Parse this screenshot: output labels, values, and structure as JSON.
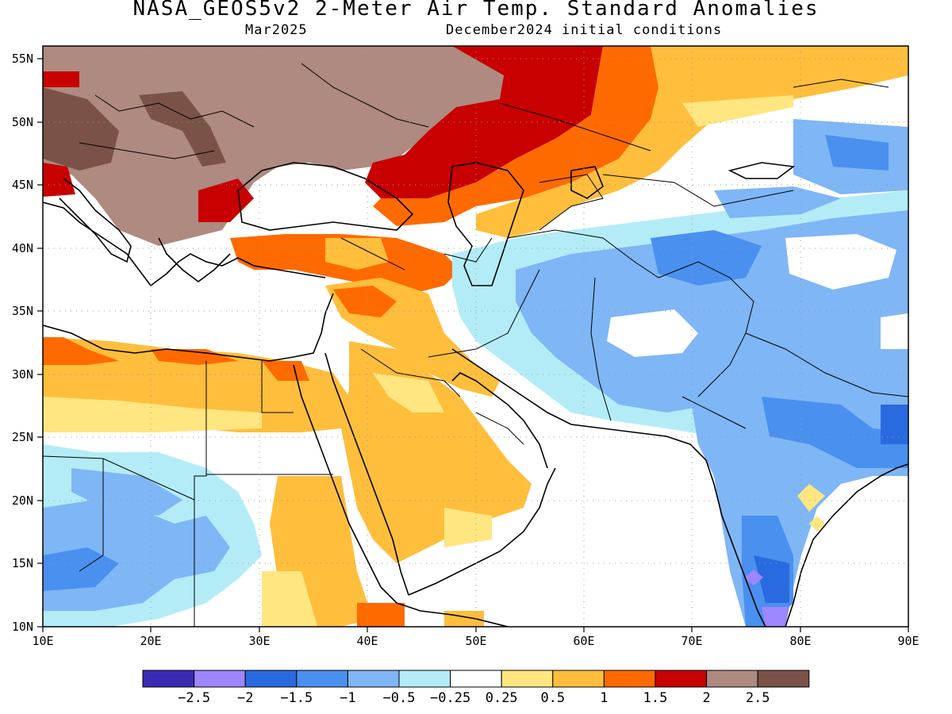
{
  "title": "NASA_GEOS5v2 2-Meter Air Temp. Standard Anomalies",
  "subtitle_left": "Mar2025",
  "subtitle_right": "December2024 initial conditions",
  "map": {
    "lon_range": [
      10,
      90
    ],
    "lat_range": [
      10,
      56
    ],
    "lon_ticks": [
      "10E",
      "20E",
      "30E",
      "40E",
      "50E",
      "60E",
      "70E",
      "80E",
      "90E"
    ],
    "lat_ticks": [
      "10N",
      "15N",
      "20N",
      "25N",
      "30N",
      "35N",
      "40N",
      "45N",
      "50N",
      "55N"
    ],
    "grid": true
  },
  "colorbar": {
    "colors": [
      "#3a2bb3",
      "#9d86ff",
      "#2a6ae0",
      "#4a90ef",
      "#7fb6f5",
      "#b3ecf7",
      "#ffffff",
      "#ffe680",
      "#ffbe3c",
      "#ff6a00",
      "#c80000",
      "#ae8a80",
      "#7a5248"
    ],
    "labels": [
      "-2.5",
      "-2",
      "-1.5",
      "-1",
      "-0.5",
      "-0.25",
      "0.25",
      "0.5",
      "1",
      "1.5",
      "2",
      "2.5"
    ]
  }
}
